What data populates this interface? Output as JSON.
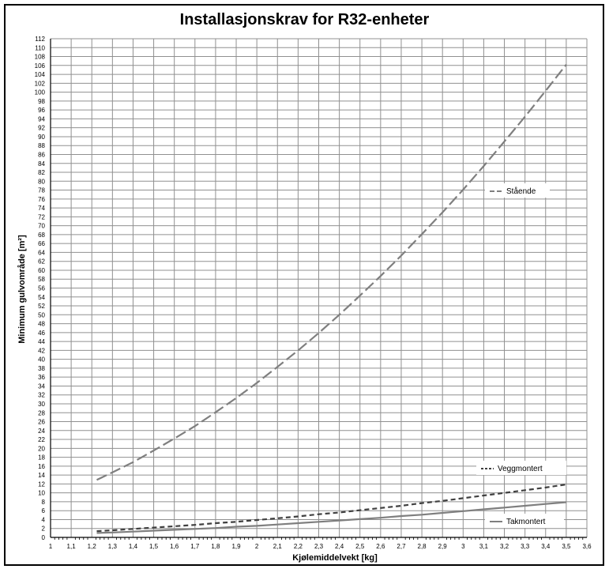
{
  "chart_data": {
    "type": "line",
    "title": "Installasjonskrav for R32-enheter",
    "xlabel": "Kjølemiddelvekt [kg]",
    "ylabel": "Minimum gulvområde [m²]",
    "xlim": [
      1,
      3.6
    ],
    "ylim": [
      0,
      112
    ],
    "x_ticks": [
      "1",
      "1,1",
      "1,2",
      "1,3",
      "1,4",
      "1,5",
      "1,6",
      "1,7",
      "1,8",
      "1,9",
      "2",
      "2,1",
      "2,2",
      "2,3",
      "2,4",
      "2,5",
      "2,6",
      "2,7",
      "2,8",
      "2,9",
      "3",
      "3,1",
      "3,2",
      "3,3",
      "3,4",
      "3,5",
      "3,6"
    ],
    "y_ticks": [
      "0",
      "2",
      "4",
      "6",
      "8",
      "10",
      "12",
      "14",
      "16",
      "18",
      "20",
      "22",
      "24",
      "26",
      "28",
      "30",
      "32",
      "34",
      "36",
      "38",
      "40",
      "42",
      "44",
      "46",
      "48",
      "50",
      "52",
      "54",
      "56",
      "58",
      "60",
      "62",
      "64",
      "66",
      "68",
      "70",
      "72",
      "74",
      "76",
      "78",
      "80",
      "82",
      "84",
      "86",
      "88",
      "90",
      "92",
      "94",
      "96",
      "98",
      "100",
      "102",
      "104",
      "106",
      "108",
      "110",
      "112"
    ],
    "grid": true,
    "x": [
      1.224,
      1.3,
      1.4,
      1.5,
      1.6,
      1.7,
      1.8,
      1.9,
      2.0,
      2.1,
      2.2,
      2.3,
      2.4,
      2.5,
      2.6,
      2.7,
      2.8,
      2.9,
      3.0,
      3.1,
      3.2,
      3.3,
      3.4,
      3.5
    ],
    "series": [
      {
        "name": "Stående",
        "style": "long-dash",
        "color": "#7f7f7f",
        "values": [
          12.9,
          14.6,
          16.9,
          19.5,
          22.2,
          25.0,
          28.1,
          31.3,
          34.7,
          38.3,
          42.0,
          45.9,
          50.0,
          54.3,
          58.7,
          63.3,
          68.1,
          73.0,
          78.1,
          83.4,
          88.9,
          94.5,
          100.3,
          106.2
        ]
      },
      {
        "name": "Veggmontert",
        "style": "short-dash",
        "color": "#404040",
        "values": [
          1.4,
          1.6,
          1.9,
          2.2,
          2.5,
          2.8,
          3.2,
          3.5,
          3.9,
          4.3,
          4.7,
          5.2,
          5.6,
          6.1,
          6.6,
          7.1,
          7.7,
          8.2,
          8.8,
          9.4,
          10.0,
          10.6,
          11.2,
          11.9
        ]
      },
      {
        "name": "Takmontert",
        "style": "solid",
        "color": "#7f7f7f",
        "values": [
          1.0,
          1.1,
          1.3,
          1.5,
          1.7,
          1.9,
          2.1,
          2.4,
          2.6,
          2.9,
          3.2,
          3.5,
          3.8,
          4.1,
          4.4,
          4.8,
          5.1,
          5.5,
          5.9,
          6.3,
          6.7,
          7.1,
          7.5,
          7.9
        ]
      }
    ]
  }
}
